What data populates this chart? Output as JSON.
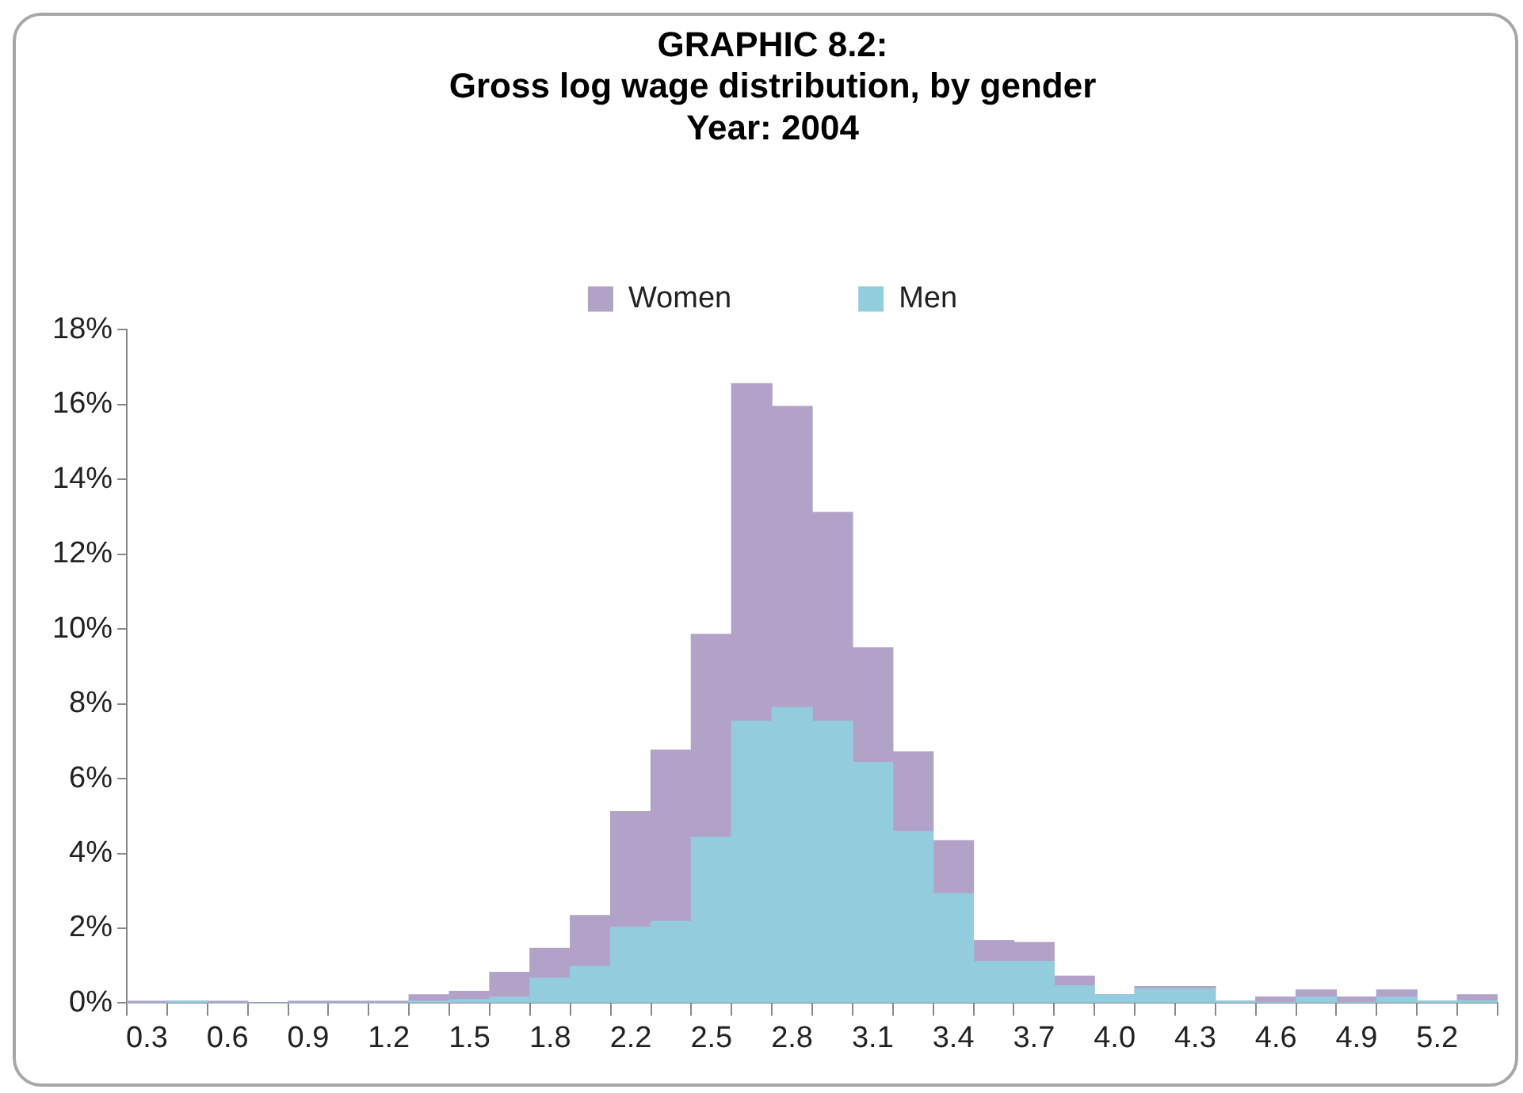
{
  "chart_data": {
    "type": "bar",
    "title": "GRAPHIC 8.2:\nGross log wage distribution, by gender",
    "subtitle": "Year: 2004",
    "categories": [
      "0.3",
      null,
      "0.6",
      null,
      "0.9",
      null,
      "1.2",
      null,
      "1.5",
      null,
      "1.8",
      null,
      "2.2",
      null,
      "2.5",
      null,
      "2.8",
      null,
      "3.1",
      null,
      "3.4",
      null,
      "3.7",
      null,
      "4.0",
      null,
      "4.3",
      null,
      "4.6",
      null,
      "4.9",
      null,
      "5.2",
      null
    ],
    "stacked": true,
    "series": [
      {
        "name": "Men",
        "color": "#93cddd",
        "values": [
          0,
          0.05,
          0,
          0,
          0,
          0,
          0,
          0.05,
          0.09,
          0.16,
          0.66,
          0.98,
          2.03,
          2.18,
          4.43,
          7.54,
          7.9,
          7.54,
          6.43,
          4.59,
          2.93,
          1.11,
          1.11,
          0.46,
          0.22,
          0.38,
          0.38,
          0.05,
          0.02,
          0.16,
          0.02,
          0.16,
          0.05,
          0.06
        ]
      },
      {
        "name": "Women",
        "color": "#b3a2c7",
        "values": [
          0.05,
          0,
          0.05,
          0,
          0.05,
          0.05,
          0.05,
          0.17,
          0.22,
          0.66,
          0.8,
          1.36,
          3.09,
          4.58,
          5.43,
          9.02,
          8.05,
          5.58,
          3.07,
          2.13,
          1.41,
          0.56,
          0.51,
          0.26,
          0,
          0.06,
          0.06,
          0,
          0.14,
          0.19,
          0.14,
          0.19,
          0,
          0.16
        ]
      }
    ],
    "ylim": [
      0,
      18
    ],
    "yticks": [
      {
        "value": 0,
        "label": "0%"
      },
      {
        "value": 2,
        "label": "2%"
      },
      {
        "value": 4,
        "label": "4%"
      },
      {
        "value": 6,
        "label": "6%"
      },
      {
        "value": 8,
        "label": "8%"
      },
      {
        "value": 10,
        "label": "10%"
      },
      {
        "value": 12,
        "label": "12%"
      },
      {
        "value": 14,
        "label": "14%"
      },
      {
        "value": 16,
        "label": "16%"
      },
      {
        "value": 18,
        "label": "18%"
      }
    ],
    "legend": "top"
  }
}
